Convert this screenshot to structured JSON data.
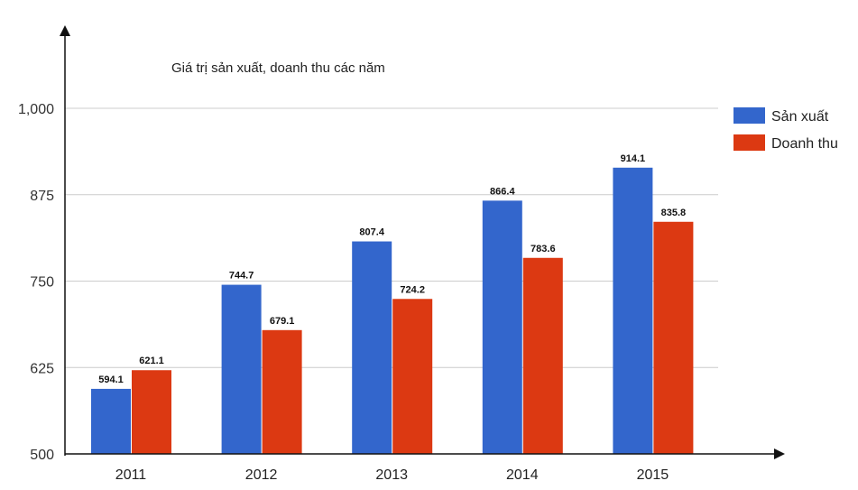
{
  "chart_data": {
    "type": "bar",
    "title": "Giá trị sản xuất, doanh thu các năm",
    "xlabel": "",
    "ylabel": "",
    "categories": [
      "2011",
      "2012",
      "2013",
      "2014",
      "2015"
    ],
    "series": [
      {
        "name": "Sản xuất",
        "color": "#3366cc",
        "values": [
          594.1,
          744.7,
          807.4,
          866.4,
          914.1
        ]
      },
      {
        "name": "Doanh thu",
        "color": "#dc3912",
        "values": [
          621.1,
          679.1,
          724.2,
          783.6,
          835.8
        ]
      }
    ],
    "ylim": [
      500,
      1000
    ],
    "yticks": [
      500,
      625,
      750,
      875,
      1000
    ],
    "ytick_labels": [
      "500",
      "625",
      "750",
      "875",
      "1,000"
    ],
    "grid": true,
    "legend_position": "right"
  }
}
